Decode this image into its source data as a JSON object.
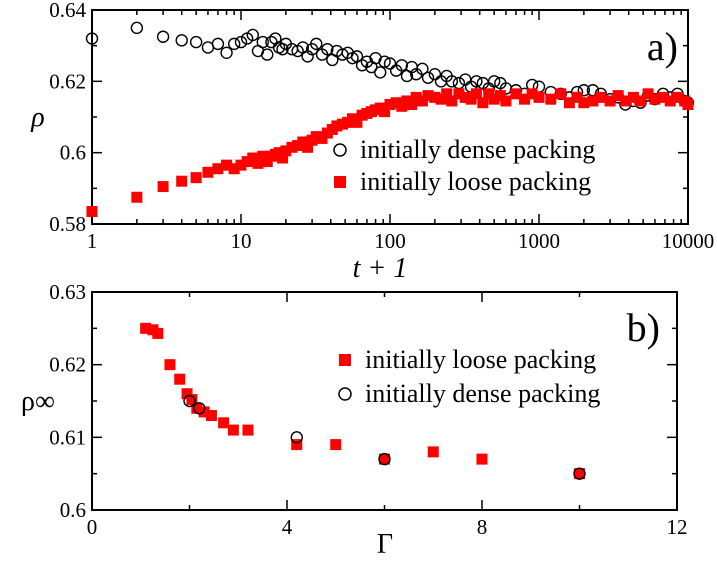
{
  "chart_data": [
    {
      "id": "a",
      "type": "scatter",
      "panel_label": "a)",
      "xlabel": "t + 1",
      "ylabel": "ρ",
      "xscale": "log",
      "xlim": [
        1,
        10000
      ],
      "ylim": [
        0.58,
        0.64
      ],
      "xticks": [
        1,
        10,
        100,
        1000,
        10000
      ],
      "xtick_labels": [
        "1",
        "10",
        "100",
        "1000",
        "10000"
      ],
      "yticks": [
        0.58,
        0.6,
        0.62,
        0.64
      ],
      "ytick_labels": [
        "0.58",
        "0.6",
        "0.62",
        "0.64"
      ],
      "grid": false,
      "legend_position": "bottom-right",
      "series": [
        {
          "name": "initially dense packing",
          "marker": "open-circle",
          "color": "#000000",
          "points": [
            [
              1,
              0.632
            ],
            [
              2,
              0.635
            ],
            [
              3,
              0.6325
            ],
            [
              4,
              0.6315
            ],
            [
              5,
              0.631
            ],
            [
              6,
              0.6295
            ],
            [
              7,
              0.6305
            ],
            [
              8,
              0.628
            ],
            [
              9,
              0.6305
            ],
            [
              10,
              0.631
            ],
            [
              11,
              0.632
            ],
            [
              12,
              0.633
            ],
            [
              13,
              0.6285
            ],
            [
              14,
              0.631
            ],
            [
              15,
              0.6275
            ],
            [
              16,
              0.631
            ],
            [
              17,
              0.632
            ],
            [
              18,
              0.6295
            ],
            [
              19,
              0.629
            ],
            [
              20,
              0.6305
            ],
            [
              22,
              0.629
            ],
            [
              24,
              0.6285
            ],
            [
              26,
              0.6295
            ],
            [
              28,
              0.627
            ],
            [
              30,
              0.629
            ],
            [
              32,
              0.6305
            ],
            [
              35,
              0.6275
            ],
            [
              38,
              0.629
            ],
            [
              41,
              0.626
            ],
            [
              44,
              0.6285
            ],
            [
              48,
              0.6275
            ],
            [
              52,
              0.628
            ],
            [
              56,
              0.6265
            ],
            [
              60,
              0.627
            ],
            [
              65,
              0.6245
            ],
            [
              70,
              0.6255
            ],
            [
              75,
              0.624
            ],
            [
              80,
              0.6265
            ],
            [
              86,
              0.6225
            ],
            [
              92,
              0.6255
            ],
            [
              100,
              0.625
            ],
            [
              110,
              0.623
            ],
            [
              120,
              0.6245
            ],
            [
              130,
              0.6215
            ],
            [
              140,
              0.624
            ],
            [
              150,
              0.622
            ],
            [
              165,
              0.6235
            ],
            [
              180,
              0.621
            ],
            [
              200,
              0.622
            ],
            [
              220,
              0.62
            ],
            [
              240,
              0.6215
            ],
            [
              260,
              0.62
            ],
            [
              290,
              0.6195
            ],
            [
              320,
              0.6205
            ],
            [
              350,
              0.6185
            ],
            [
              380,
              0.62
            ],
            [
              420,
              0.6195
            ],
            [
              460,
              0.618
            ],
            [
              500,
              0.62
            ],
            [
              550,
              0.6195
            ],
            [
              600,
              0.618
            ],
            [
              700,
              0.6175
            ],
            [
              800,
              0.6165
            ],
            [
              900,
              0.619
            ],
            [
              1000,
              0.6185
            ],
            [
              1200,
              0.617
            ],
            [
              1400,
              0.6165
            ],
            [
              1600,
              0.6155
            ],
            [
              1800,
              0.617
            ],
            [
              2000,
              0.6175
            ],
            [
              2300,
              0.6175
            ],
            [
              2600,
              0.6165
            ],
            [
              3000,
              0.615
            ],
            [
              3400,
              0.6155
            ],
            [
              3800,
              0.6135
            ],
            [
              4300,
              0.6145
            ],
            [
              4800,
              0.614
            ],
            [
              5400,
              0.616
            ],
            [
              6000,
              0.615
            ],
            [
              6800,
              0.6165
            ],
            [
              7600,
              0.6155
            ],
            [
              8500,
              0.6165
            ],
            [
              9500,
              0.6145
            ],
            [
              10000,
              0.614
            ]
          ]
        },
        {
          "name": "initially loose packing",
          "marker": "filled-square",
          "color": "#ff0000",
          "points": [
            [
              1,
              0.5835
            ],
            [
              2,
              0.5875
            ],
            [
              3,
              0.5905
            ],
            [
              4,
              0.592
            ],
            [
              5,
              0.593
            ],
            [
              6,
              0.5945
            ],
            [
              7,
              0.5955
            ],
            [
              8,
              0.5965
            ],
            [
              9,
              0.5955
            ],
            [
              10,
              0.5965
            ],
            [
              11,
              0.5975
            ],
            [
              12,
              0.5985
            ],
            [
              13,
              0.597
            ],
            [
              14,
              0.599
            ],
            [
              15,
              0.5975
            ],
            [
              16,
              0.599
            ],
            [
              17,
              0.5995
            ],
            [
              18,
              0.6
            ],
            [
              19,
              0.5985
            ],
            [
              20,
              0.6005
            ],
            [
              22,
              0.6015
            ],
            [
              24,
              0.602
            ],
            [
              26,
              0.603
            ],
            [
              28,
              0.6015
            ],
            [
              30,
              0.6035
            ],
            [
              32,
              0.6045
            ],
            [
              35,
              0.604
            ],
            [
              38,
              0.6055
            ],
            [
              41,
              0.6065
            ],
            [
              44,
              0.6075
            ],
            [
              48,
              0.608
            ],
            [
              52,
              0.6085
            ],
            [
              56,
              0.6095
            ],
            [
              60,
              0.6085
            ],
            [
              65,
              0.6105
            ],
            [
              70,
              0.611
            ],
            [
              75,
              0.6115
            ],
            [
              80,
              0.612
            ],
            [
              86,
              0.6125
            ],
            [
              92,
              0.6115
            ],
            [
              100,
              0.6135
            ],
            [
              110,
              0.614
            ],
            [
              120,
              0.613
            ],
            [
              130,
              0.6145
            ],
            [
              140,
              0.6135
            ],
            [
              150,
              0.6155
            ],
            [
              165,
              0.6145
            ],
            [
              180,
              0.616
            ],
            [
              200,
              0.6155
            ],
            [
              220,
              0.615
            ],
            [
              240,
              0.6165
            ],
            [
              260,
              0.6145
            ],
            [
              290,
              0.6165
            ],
            [
              320,
              0.6155
            ],
            [
              350,
              0.615
            ],
            [
              380,
              0.6165
            ],
            [
              420,
              0.614
            ],
            [
              460,
              0.6165
            ],
            [
              500,
              0.615
            ],
            [
              550,
              0.616
            ],
            [
              600,
              0.6145
            ],
            [
              700,
              0.6165
            ],
            [
              800,
              0.615
            ],
            [
              900,
              0.6165
            ],
            [
              1000,
              0.6155
            ],
            [
              1200,
              0.615
            ],
            [
              1400,
              0.6165
            ],
            [
              1600,
              0.614
            ],
            [
              1800,
              0.6155
            ],
            [
              2000,
              0.614
            ],
            [
              2300,
              0.6145
            ],
            [
              2600,
              0.6155
            ],
            [
              3000,
              0.6145
            ],
            [
              3400,
              0.616
            ],
            [
              3800,
              0.6145
            ],
            [
              4300,
              0.6155
            ],
            [
              4800,
              0.6145
            ],
            [
              5400,
              0.6165
            ],
            [
              6000,
              0.615
            ],
            [
              6800,
              0.6155
            ],
            [
              7600,
              0.6145
            ],
            [
              8500,
              0.6155
            ],
            [
              9500,
              0.6145
            ],
            [
              10000,
              0.6135
            ]
          ]
        }
      ]
    },
    {
      "id": "b",
      "type": "scatter",
      "panel_label": "b)",
      "xlabel": "Γ",
      "ylabel": "ρ∞",
      "xscale": "linear",
      "xlim": [
        0,
        12
      ],
      "ylim": [
        0.6,
        0.63
      ],
      "xticks": [
        0,
        4,
        8,
        12
      ],
      "xtick_labels": [
        "0",
        "4",
        "8",
        "12"
      ],
      "yticks": [
        0.6,
        0.61,
        0.62,
        0.63
      ],
      "ytick_labels": [
        "0.6",
        "0.61",
        "0.62",
        "0.63"
      ],
      "grid": false,
      "legend_position": "top-right",
      "series": [
        {
          "name": "initially loose packing",
          "marker": "filled-square",
          "color": "#ff0000",
          "points": [
            [
              1.1,
              0.625
            ],
            [
              1.25,
              0.6248
            ],
            [
              1.35,
              0.6243
            ],
            [
              1.6,
              0.62
            ],
            [
              1.8,
              0.618
            ],
            [
              1.95,
              0.616
            ],
            [
              2.05,
              0.6152
            ],
            [
              2.15,
              0.614
            ],
            [
              2.3,
              0.6135
            ],
            [
              2.45,
              0.613
            ],
            [
              2.7,
              0.612
            ],
            [
              2.9,
              0.611
            ],
            [
              3.2,
              0.611
            ],
            [
              4.2,
              0.609
            ],
            [
              5.0,
              0.609
            ],
            [
              6.0,
              0.607
            ],
            [
              7.0,
              0.608
            ],
            [
              8.0,
              0.607
            ],
            [
              10.0,
              0.605
            ]
          ]
        },
        {
          "name": "initially dense packing",
          "marker": "open-circle",
          "color": "#000000",
          "points": [
            [
              2.0,
              0.615
            ],
            [
              2.2,
              0.614
            ],
            [
              4.2,
              0.61
            ],
            [
              6.0,
              0.607
            ],
            [
              10.0,
              0.605
            ]
          ]
        }
      ]
    }
  ]
}
